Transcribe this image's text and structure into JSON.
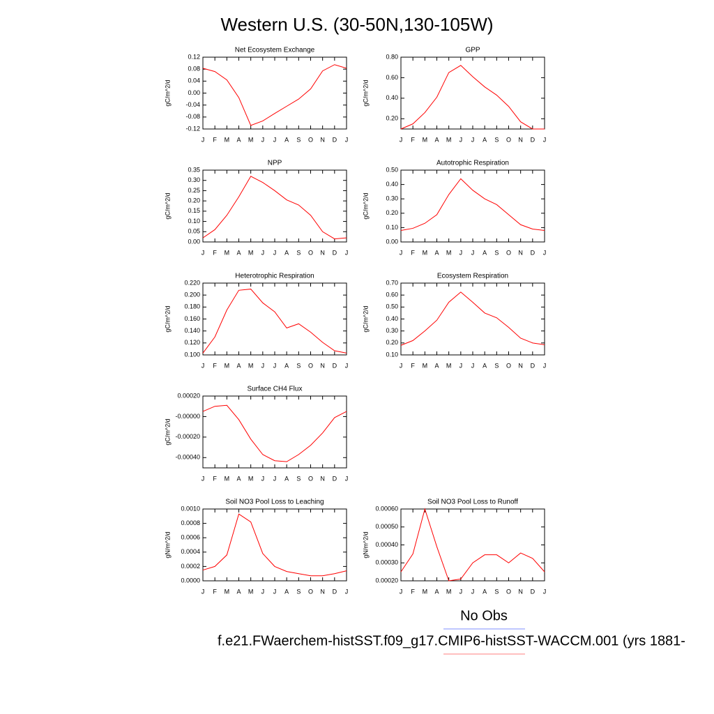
{
  "title": "Western U.S. (30-50N,130-105W)",
  "legend": {
    "obs": "No Obs",
    "model": "f.e21.FWaerchem-histSST.f09_g17.CMIP6-histSST-WACCM.001 (yrs 1881-"
  },
  "chart_data": [
    {
      "type": "line",
      "title": "Net Ecosystem Exchange",
      "y_label": "gC/m^2/d",
      "color": "#ff0000",
      "categories": [
        "J",
        "F",
        "M",
        "A",
        "M",
        "J",
        "J",
        "A",
        "S",
        "O",
        "N",
        "D",
        "J"
      ],
      "values": [
        0.083,
        0.072,
        0.044,
        -0.015,
        -0.108,
        -0.093,
        -0.068,
        -0.044,
        -0.02,
        0.014,
        0.074,
        0.095,
        0.083
      ],
      "ylim": [
        -0.12,
        0.12
      ],
      "yticks": [
        -0.12,
        -0.08,
        -0.04,
        {
          "value": 0,
          "label": "0.00"
        },
        0.04,
        0.08,
        0.12
      ]
    },
    {
      "type": "line",
      "title": "GPP",
      "y_label": "gC/m^2/d",
      "color": "#ff0000",
      "categories": [
        "J",
        "F",
        "M",
        "A",
        "M",
        "J",
        "J",
        "A",
        "S",
        "O",
        "N",
        "D",
        "J"
      ],
      "values": [
        0.1,
        0.15,
        0.26,
        0.41,
        0.65,
        0.72,
        0.61,
        0.51,
        0.43,
        0.32,
        0.17,
        0.1,
        0.1
      ],
      "ylim": [
        0.1,
        0.8
      ],
      "yticks": [
        {
          "value": 0.2,
          "label": "0.20"
        },
        {
          "value": 0.4,
          "label": "0.40"
        },
        {
          "value": 0.6,
          "label": "0.60"
        },
        {
          "value": 0.8,
          "label": "0.80"
        }
      ]
    },
    {
      "type": "line",
      "title": "NPP",
      "y_label": "gC/m^2/d",
      "color": "#ff0000",
      "categories": [
        "J",
        "F",
        "M",
        "A",
        "M",
        "J",
        "J",
        "A",
        "S",
        "O",
        "N",
        "D",
        "J"
      ],
      "values": [
        0.02,
        0.06,
        0.13,
        0.22,
        0.32,
        0.29,
        0.25,
        0.205,
        0.18,
        0.13,
        0.05,
        0.015,
        0.02
      ],
      "ylim": [
        0,
        0.35
      ],
      "yticks": [
        {
          "value": 0,
          "label": "0.00"
        },
        0.05,
        {
          "value": 0.1,
          "label": "0.10"
        },
        0.15,
        {
          "value": 0.2,
          "label": "0.20"
        },
        0.25,
        {
          "value": 0.3,
          "label": "0.30"
        },
        0.35
      ]
    },
    {
      "type": "line",
      "title": "Autotrophic Respiration",
      "y_label": "gC/m^2/d",
      "color": "#ff0000",
      "categories": [
        "J",
        "F",
        "M",
        "A",
        "M",
        "J",
        "J",
        "A",
        "S",
        "O",
        "N",
        "D",
        "J"
      ],
      "values": [
        0.08,
        0.095,
        0.13,
        0.19,
        0.33,
        0.44,
        0.36,
        0.3,
        0.26,
        0.19,
        0.12,
        0.09,
        0.08
      ],
      "ylim": [
        0,
        0.5
      ],
      "yticks": [
        {
          "value": 0,
          "label": "0.00"
        },
        {
          "value": 0.1,
          "label": "0.10"
        },
        {
          "value": 0.2,
          "label": "0.20"
        },
        {
          "value": 0.3,
          "label": "0.30"
        },
        {
          "value": 0.4,
          "label": "0.40"
        },
        {
          "value": 0.5,
          "label": "0.50"
        }
      ]
    },
    {
      "type": "line",
      "title": "Heterotrophic Respiration",
      "y_label": "gC/m^2/d",
      "color": "#ff0000",
      "categories": [
        "J",
        "F",
        "M",
        "A",
        "M",
        "J",
        "J",
        "A",
        "S",
        "O",
        "N",
        "D",
        "J"
      ],
      "values": [
        0.103,
        0.13,
        0.175,
        0.208,
        0.21,
        0.187,
        0.172,
        0.145,
        0.152,
        0.138,
        0.121,
        0.107,
        0.103
      ],
      "ylim": [
        0.1,
        0.22
      ],
      "yticks": [
        {
          "value": 0.1,
          "label": "0.100"
        },
        {
          "value": 0.12,
          "label": "0.120"
        },
        {
          "value": 0.14,
          "label": "0.140"
        },
        {
          "value": 0.16,
          "label": "0.160"
        },
        {
          "value": 0.18,
          "label": "0.180"
        },
        {
          "value": 0.2,
          "label": "0.200"
        },
        {
          "value": 0.22,
          "label": "0.220"
        }
      ]
    },
    {
      "type": "line",
      "title": "Ecosystem Respiration",
      "y_label": "gC/m^2/d",
      "color": "#ff0000",
      "categories": [
        "J",
        "F",
        "M",
        "A",
        "M",
        "J",
        "J",
        "A",
        "S",
        "O",
        "N",
        "D",
        "J"
      ],
      "values": [
        0.18,
        0.22,
        0.3,
        0.39,
        0.54,
        0.625,
        0.54,
        0.45,
        0.41,
        0.33,
        0.24,
        0.2,
        0.185
      ],
      "ylim": [
        0.1,
        0.7
      ],
      "yticks": [
        {
          "value": 0.1,
          "label": "0.10"
        },
        {
          "value": 0.2,
          "label": "0.20"
        },
        {
          "value": 0.3,
          "label": "0.30"
        },
        {
          "value": 0.4,
          "label": "0.40"
        },
        {
          "value": 0.5,
          "label": "0.50"
        },
        {
          "value": 0.6,
          "label": "0.60"
        },
        {
          "value": 0.7,
          "label": "0.70"
        }
      ]
    },
    {
      "type": "line",
      "title": "Surface CH4 Flux",
      "y_label": "gC/m^2/d",
      "color": "#ff0000",
      "categories": [
        "J",
        "F",
        "M",
        "A",
        "M",
        "J",
        "J",
        "A",
        "S",
        "O",
        "N",
        "D",
        "J"
      ],
      "values": [
        5e-05,
        0.0001,
        0.00011,
        -3e-05,
        -0.00022,
        -0.00037,
        -0.00043,
        -0.00044,
        -0.00037,
        -0.00028,
        -0.00016,
        -1e-05,
        5e-05
      ],
      "ylim": [
        -0.0005,
        0.0002
      ],
      "yticks": [
        {
          "value": -0.0004,
          "label": "-0.00040"
        },
        {
          "value": -0.0002,
          "label": "-0.00020"
        },
        {
          "value": 0,
          "label": "-0.00000"
        },
        {
          "value": 0.0002,
          "label": "0.00020"
        }
      ]
    },
    {
      "type": "line",
      "title": "Soil NO3 Pool Loss to Leaching",
      "y_label": "gN/m^2/d",
      "color": "#ff0000",
      "categories": [
        "J",
        "F",
        "M",
        "A",
        "M",
        "J",
        "J",
        "A",
        "S",
        "O",
        "N",
        "D",
        "J"
      ],
      "values": [
        0.00015,
        0.0002,
        0.00036,
        0.00093,
        0.00082,
        0.00038,
        0.0002,
        0.00013,
        0.0001,
        7e-05,
        7e-05,
        0.0001,
        0.00014
      ],
      "ylim": [
        0,
        0.001
      ],
      "yticks": [
        {
          "value": 0,
          "label": "0.0000"
        },
        {
          "value": 0.0002,
          "label": "0.0002"
        },
        {
          "value": 0.0004,
          "label": "0.0004"
        },
        {
          "value": 0.0006,
          "label": "0.0006"
        },
        {
          "value": 0.0008,
          "label": "0.0008"
        },
        {
          "value": 0.001,
          "label": "0.0010"
        }
      ]
    },
    {
      "type": "line",
      "title": "Soil NO3 Pool Loss to Runoff",
      "y_label": "gN/m^2/d",
      "color": "#ff0000",
      "categories": [
        "J",
        "F",
        "M",
        "A",
        "M",
        "J",
        "J",
        "A",
        "S",
        "O",
        "N",
        "D",
        "J"
      ],
      "values": [
        0.00025,
        0.00035,
        0.0006,
        0.00039,
        0.0002,
        0.00021,
        0.0003,
        0.000345,
        0.000345,
        0.0003,
        0.000355,
        0.000325,
        0.00025
      ],
      "ylim": [
        0.0002,
        0.0006
      ],
      "yticks": [
        {
          "value": 0.0002,
          "label": "0.00020"
        },
        {
          "value": 0.0003,
          "label": "0.00030"
        },
        {
          "value": 0.0004,
          "label": "0.00040"
        },
        {
          "value": 0.0005,
          "label": "0.00050"
        },
        {
          "value": 0.0006,
          "label": "0.00060"
        }
      ]
    }
  ]
}
